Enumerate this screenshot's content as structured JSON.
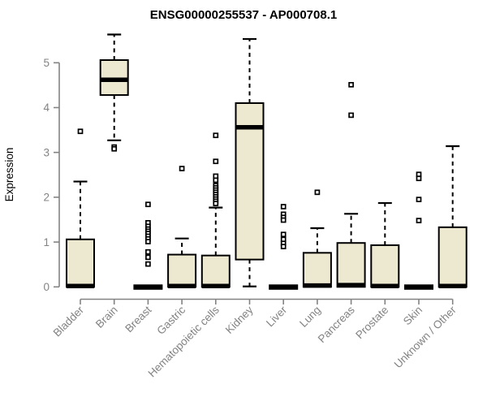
{
  "title": "ENSG00000255537 - AP000708.1",
  "colors": {
    "background": "#ffffff",
    "box_fill": "#EDE8D0",
    "box_stroke": "#000000",
    "median": "#000000",
    "whisker": "#000000",
    "outlier_stroke": "#000000",
    "outlier_fill": "#ffffff",
    "axis": "#838383",
    "tick_label": "#838383",
    "title": "#000000"
  },
  "chart_data": {
    "type": "boxplot",
    "title": "ENSG00000255537 - AP000708.1",
    "xlabel": "",
    "ylabel": "Expression",
    "ylim": [
      0,
      5.65
    ],
    "yticks": [
      0,
      1,
      2,
      3,
      4,
      5
    ],
    "grid": false,
    "legend": false,
    "categories": [
      "Bladder",
      "Brain",
      "Breast",
      "Gastric",
      "Hematopoietic cells",
      "Kidney",
      "Liver",
      "Lung",
      "Pancreas",
      "Prostate",
      "Skin",
      "Unknown / Other"
    ],
    "series": [
      {
        "name": "Bladder",
        "whisker_low": 0,
        "q1": 0,
        "median": 0.02,
        "q3": 1.06,
        "whisker_high": 2.35,
        "outliers": [
          3.47
        ]
      },
      {
        "name": "Brain",
        "whisker_low": 3.27,
        "q1": 4.28,
        "median": 4.62,
        "q3": 5.06,
        "whisker_high": 5.63,
        "outliers": [
          3.12,
          3.08
        ]
      },
      {
        "name": "Breast",
        "whisker_low": 0,
        "q1": 0,
        "median": 0,
        "q3": 0,
        "whisker_high": 0,
        "outliers": [
          1.84,
          1.43,
          1.35,
          1.29,
          1.24,
          1.19,
          1.13,
          1.07,
          1.01,
          0.78,
          0.66,
          0.51
        ]
      },
      {
        "name": "Gastric",
        "whisker_low": 0,
        "q1": 0,
        "median": 0.02,
        "q3": 0.72,
        "whisker_high": 1.08,
        "outliers": [
          2.64
        ]
      },
      {
        "name": "Hematopoietic cells",
        "whisker_low": 0,
        "q1": 0,
        "median": 0.02,
        "q3": 0.7,
        "whisker_high": 1.77,
        "outliers": [
          3.38,
          2.8,
          2.47,
          2.38,
          2.26,
          2.21,
          2.16,
          2.11,
          2.06,
          2.01,
          1.96,
          1.91,
          1.86
        ]
      },
      {
        "name": "Kidney",
        "whisker_low": 0.01,
        "q1": 0.61,
        "median": 3.56,
        "q3": 4.1,
        "whisker_high": 5.53,
        "outliers": []
      },
      {
        "name": "Liver",
        "whisker_low": 0,
        "q1": 0,
        "median": 0,
        "q3": 0,
        "whisker_high": 0,
        "outliers": [
          1.79,
          1.62,
          1.55,
          1.49,
          1.17,
          1.06,
          0.97,
          0.9
        ]
      },
      {
        "name": "Lung",
        "whisker_low": 0,
        "q1": 0,
        "median": 0.03,
        "q3": 0.76,
        "whisker_high": 1.31,
        "outliers": [
          2.11
        ]
      },
      {
        "name": "Pancreas",
        "whisker_low": 0,
        "q1": 0,
        "median": 0.04,
        "q3": 0.98,
        "whisker_high": 1.63,
        "outliers": [
          4.51,
          3.83
        ]
      },
      {
        "name": "Prostate",
        "whisker_low": 0,
        "q1": 0,
        "median": 0.02,
        "q3": 0.93,
        "whisker_high": 1.87,
        "outliers": []
      },
      {
        "name": "Skin",
        "whisker_low": 0,
        "q1": 0,
        "median": 0,
        "q3": 0,
        "whisker_high": 0,
        "outliers": [
          2.51,
          2.42,
          1.95,
          1.48
        ]
      },
      {
        "name": "Unknown / Other",
        "whisker_low": 0,
        "q1": 0,
        "median": 0.02,
        "q3": 1.33,
        "whisker_high": 3.14,
        "outliers": []
      }
    ]
  }
}
